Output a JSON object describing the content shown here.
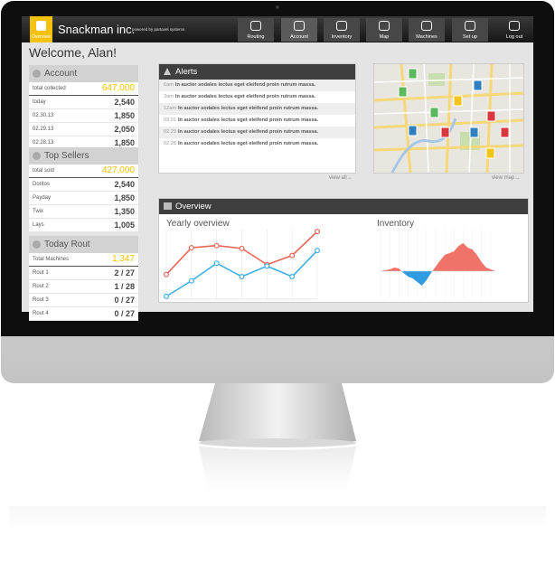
{
  "header": {
    "logo": "Overview",
    "brand": "Snackman inc.",
    "tagline": "powered by partavel systems",
    "nav": [
      "Routing",
      "Account",
      "Inventory",
      "Map",
      "Machines",
      "Set up",
      "Log out"
    ]
  },
  "welcome": "Welcome, Alan!",
  "panels": [
    {
      "title": "Account",
      "total_label": "total collected",
      "total": "647,000",
      "rows": [
        [
          "today",
          "2,540"
        ],
        [
          "02.30.13",
          "1,850"
        ],
        [
          "02.29.13",
          "2,050"
        ],
        [
          "02.28.13",
          "1,850"
        ]
      ]
    },
    {
      "title": "Top Sellers",
      "total_label": "total sold",
      "total": "427,000",
      "rows": [
        [
          "Doritos",
          "2,540"
        ],
        [
          "Payday",
          "1,850"
        ],
        [
          "Twix",
          "1,350"
        ],
        [
          "Lays",
          "1,005"
        ]
      ]
    },
    {
      "title": "Today Rout",
      "total_label": "Total Machines",
      "total": "1,347",
      "rows": [
        [
          "Rout 1",
          "2 / 27"
        ],
        [
          "Rout 2",
          "1 / 28"
        ],
        [
          "Rout 3",
          "0 / 27"
        ],
        [
          "Rout 4",
          "0 / 27"
        ]
      ]
    }
  ],
  "alerts": {
    "title": "Alerts",
    "link": "view all→",
    "items": [
      {
        "time": "6am",
        "text": "In auctor sodales lectus eget eleifend proin rutrum massa."
      },
      {
        "time": "3am",
        "text": "In auctor sodales lectus eget eleifend proin rutrum massa."
      },
      {
        "time": "12am",
        "text": "In auctor sodales lectus eget eleifend proin rutrum massa."
      },
      {
        "time": "03.01",
        "text": "In auctor sodales lectus eget eleifend proin rutrum massa."
      },
      {
        "time": "02.29",
        "text": "In auctor sodales lectus eget eleifend proin rutrum massa."
      },
      {
        "time": "02.28",
        "text": "In auctor sodales lectus eget eleifend proin rutrum massa."
      }
    ]
  },
  "map": {
    "link": "view map→"
  },
  "overview": {
    "title": "Overview",
    "yearly": {
      "type": "line",
      "title": "Yearly overview",
      "ylim": [
        0,
        100
      ],
      "series": [
        {
          "color": "#e8675b",
          "values": [
            35,
            73,
            76,
            72,
            49,
            62,
            96
          ]
        },
        {
          "color": "#3fb0e6",
          "values": [
            4,
            26,
            51,
            32,
            47,
            32,
            69
          ]
        }
      ]
    },
    "inventory": {
      "type": "area",
      "title": "Inventory",
      "ylim": [
        -20,
        40
      ],
      "positive_color": "#f0736a",
      "negative_color": "#2f9be0",
      "values": [
        0,
        1,
        2,
        4,
        3,
        -2,
        -6,
        -8,
        -12,
        -16,
        -10,
        -2,
        5,
        12,
        18,
        20,
        22,
        28,
        31,
        26,
        24,
        18,
        10,
        4,
        2,
        0
      ]
    }
  }
}
